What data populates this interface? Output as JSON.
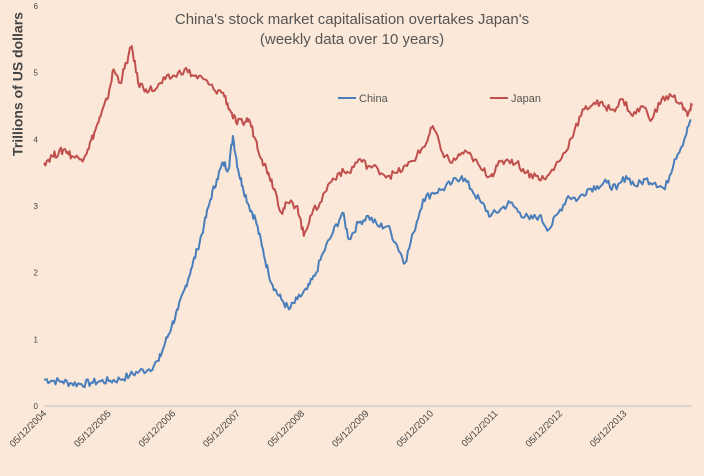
{
  "chart_data": {
    "type": "line",
    "title": "China's stock market capitalisation overtakes Japan's",
    "subtitle": "(weekly data over 10 years)",
    "xlabel": "",
    "ylabel": "Trillions of US dollars",
    "ylim": [
      0,
      6
    ],
    "yticks": [
      "0",
      "1",
      "2",
      "3",
      "4",
      "5",
      "6"
    ],
    "xticks": [
      "05/12/2004",
      "05/12/2005",
      "05/12/2006",
      "05/12/2007",
      "05/12/2008",
      "05/12/2009",
      "05/12/2010",
      "05/12/2011",
      "05/12/2012",
      "05/12/2013"
    ],
    "grid": false,
    "legend_position": "top-right",
    "series": [
      {
        "name": "China",
        "color": "#4a7ebb",
        "points": [
          [
            2004.92,
            0.4
          ],
          [
            2005.05,
            0.38
          ],
          [
            2005.2,
            0.37
          ],
          [
            2005.35,
            0.34
          ],
          [
            2005.5,
            0.33
          ],
          [
            2005.65,
            0.35
          ],
          [
            2005.8,
            0.37
          ],
          [
            2005.95,
            0.38
          ],
          [
            2006.1,
            0.4
          ],
          [
            2006.25,
            0.46
          ],
          [
            2006.4,
            0.52
          ],
          [
            2006.55,
            0.55
          ],
          [
            2006.7,
            0.68
          ],
          [
            2006.8,
            0.95
          ],
          [
            2006.9,
            1.2
          ],
          [
            2007.0,
            1.45
          ],
          [
            2007.1,
            1.75
          ],
          [
            2007.2,
            2.05
          ],
          [
            2007.3,
            2.35
          ],
          [
            2007.4,
            2.7
          ],
          [
            2007.5,
            3.1
          ],
          [
            2007.6,
            3.4
          ],
          [
            2007.7,
            3.65
          ],
          [
            2007.78,
            3.55
          ],
          [
            2007.85,
            4.05
          ],
          [
            2007.93,
            3.55
          ],
          [
            2008.0,
            3.3
          ],
          [
            2008.1,
            3.0
          ],
          [
            2008.2,
            2.8
          ],
          [
            2008.3,
            2.4
          ],
          [
            2008.4,
            2.0
          ],
          [
            2008.5,
            1.75
          ],
          [
            2008.6,
            1.6
          ],
          [
            2008.72,
            1.45
          ],
          [
            2008.85,
            1.6
          ],
          [
            2009.0,
            1.75
          ],
          [
            2009.12,
            1.95
          ],
          [
            2009.25,
            2.3
          ],
          [
            2009.4,
            2.6
          ],
          [
            2009.55,
            2.9
          ],
          [
            2009.65,
            2.5
          ],
          [
            2009.8,
            2.75
          ],
          [
            2009.95,
            2.85
          ],
          [
            2010.1,
            2.7
          ],
          [
            2010.25,
            2.7
          ],
          [
            2010.4,
            2.4
          ],
          [
            2010.52,
            2.15
          ],
          [
            2010.65,
            2.6
          ],
          [
            2010.8,
            3.1
          ],
          [
            2010.95,
            3.2
          ],
          [
            2011.1,
            3.25
          ],
          [
            2011.25,
            3.35
          ],
          [
            2011.4,
            3.45
          ],
          [
            2011.55,
            3.25
          ],
          [
            2011.7,
            3.05
          ],
          [
            2011.85,
            2.85
          ],
          [
            2012.0,
            2.95
          ],
          [
            2012.15,
            3.05
          ],
          [
            2012.3,
            2.9
          ],
          [
            2012.45,
            2.8
          ],
          [
            2012.6,
            2.85
          ],
          [
            2012.75,
            2.65
          ],
          [
            2012.9,
            2.9
          ],
          [
            2013.05,
            3.15
          ],
          [
            2013.2,
            3.1
          ],
          [
            2013.35,
            3.25
          ],
          [
            2013.5,
            3.3
          ],
          [
            2013.65,
            3.35
          ],
          [
            2013.8,
            3.25
          ],
          [
            2013.95,
            3.45
          ],
          [
            2014.1,
            3.3
          ],
          [
            2014.25,
            3.4
          ],
          [
            2014.4,
            3.35
          ],
          [
            2014.55,
            3.25
          ],
          [
            2014.7,
            3.7
          ],
          [
            2014.85,
            4.0
          ],
          [
            2014.95,
            4.3
          ]
        ]
      },
      {
        "name": "Japan",
        "color": "#c0504d",
        "points": [
          [
            2004.92,
            3.65
          ],
          [
            2005.05,
            3.75
          ],
          [
            2005.15,
            3.8
          ],
          [
            2005.25,
            3.85
          ],
          [
            2005.35,
            3.75
          ],
          [
            2005.5,
            3.7
          ],
          [
            2005.6,
            3.85
          ],
          [
            2005.7,
            4.1
          ],
          [
            2005.8,
            4.35
          ],
          [
            2005.9,
            4.6
          ],
          [
            2006.0,
            5.05
          ],
          [
            2006.1,
            4.85
          ],
          [
            2006.2,
            5.15
          ],
          [
            2006.28,
            5.4
          ],
          [
            2006.38,
            4.85
          ],
          [
            2006.5,
            4.75
          ],
          [
            2006.65,
            4.75
          ],
          [
            2006.8,
            4.9
          ],
          [
            2006.95,
            4.95
          ],
          [
            2007.1,
            5.05
          ],
          [
            2007.25,
            4.95
          ],
          [
            2007.4,
            4.9
          ],
          [
            2007.55,
            4.75
          ],
          [
            2007.7,
            4.7
          ],
          [
            2007.8,
            4.45
          ],
          [
            2007.9,
            4.25
          ],
          [
            2008.0,
            4.25
          ],
          [
            2008.1,
            4.3
          ],
          [
            2008.2,
            4.0
          ],
          [
            2008.3,
            3.7
          ],
          [
            2008.4,
            3.5
          ],
          [
            2008.5,
            3.25
          ],
          [
            2008.6,
            2.9
          ],
          [
            2008.7,
            3.05
          ],
          [
            2008.85,
            3.0
          ],
          [
            2008.95,
            2.55
          ],
          [
            2009.05,
            2.85
          ],
          [
            2009.2,
            3.05
          ],
          [
            2009.35,
            3.35
          ],
          [
            2009.5,
            3.5
          ],
          [
            2009.65,
            3.5
          ],
          [
            2009.8,
            3.7
          ],
          [
            2009.95,
            3.6
          ],
          [
            2010.1,
            3.55
          ],
          [
            2010.25,
            3.45
          ],
          [
            2010.4,
            3.5
          ],
          [
            2010.55,
            3.6
          ],
          [
            2010.7,
            3.75
          ],
          [
            2010.85,
            3.95
          ],
          [
            2010.95,
            4.2
          ],
          [
            2011.1,
            3.8
          ],
          [
            2011.25,
            3.65
          ],
          [
            2011.4,
            3.8
          ],
          [
            2011.55,
            3.75
          ],
          [
            2011.7,
            3.55
          ],
          [
            2011.85,
            3.45
          ],
          [
            2011.95,
            3.6
          ],
          [
            2012.1,
            3.7
          ],
          [
            2012.25,
            3.65
          ],
          [
            2012.4,
            3.5
          ],
          [
            2012.55,
            3.45
          ],
          [
            2012.7,
            3.4
          ],
          [
            2012.85,
            3.6
          ],
          [
            2013.0,
            3.8
          ],
          [
            2013.15,
            4.15
          ],
          [
            2013.3,
            4.45
          ],
          [
            2013.45,
            4.55
          ],
          [
            2013.6,
            4.5
          ],
          [
            2013.75,
            4.45
          ],
          [
            2013.9,
            4.6
          ],
          [
            2014.05,
            4.35
          ],
          [
            2014.2,
            4.5
          ],
          [
            2014.35,
            4.3
          ],
          [
            2014.5,
            4.6
          ],
          [
            2014.65,
            4.65
          ],
          [
            2014.8,
            4.55
          ],
          [
            2014.9,
            4.35
          ],
          [
            2014.97,
            4.5
          ]
        ]
      }
    ]
  }
}
